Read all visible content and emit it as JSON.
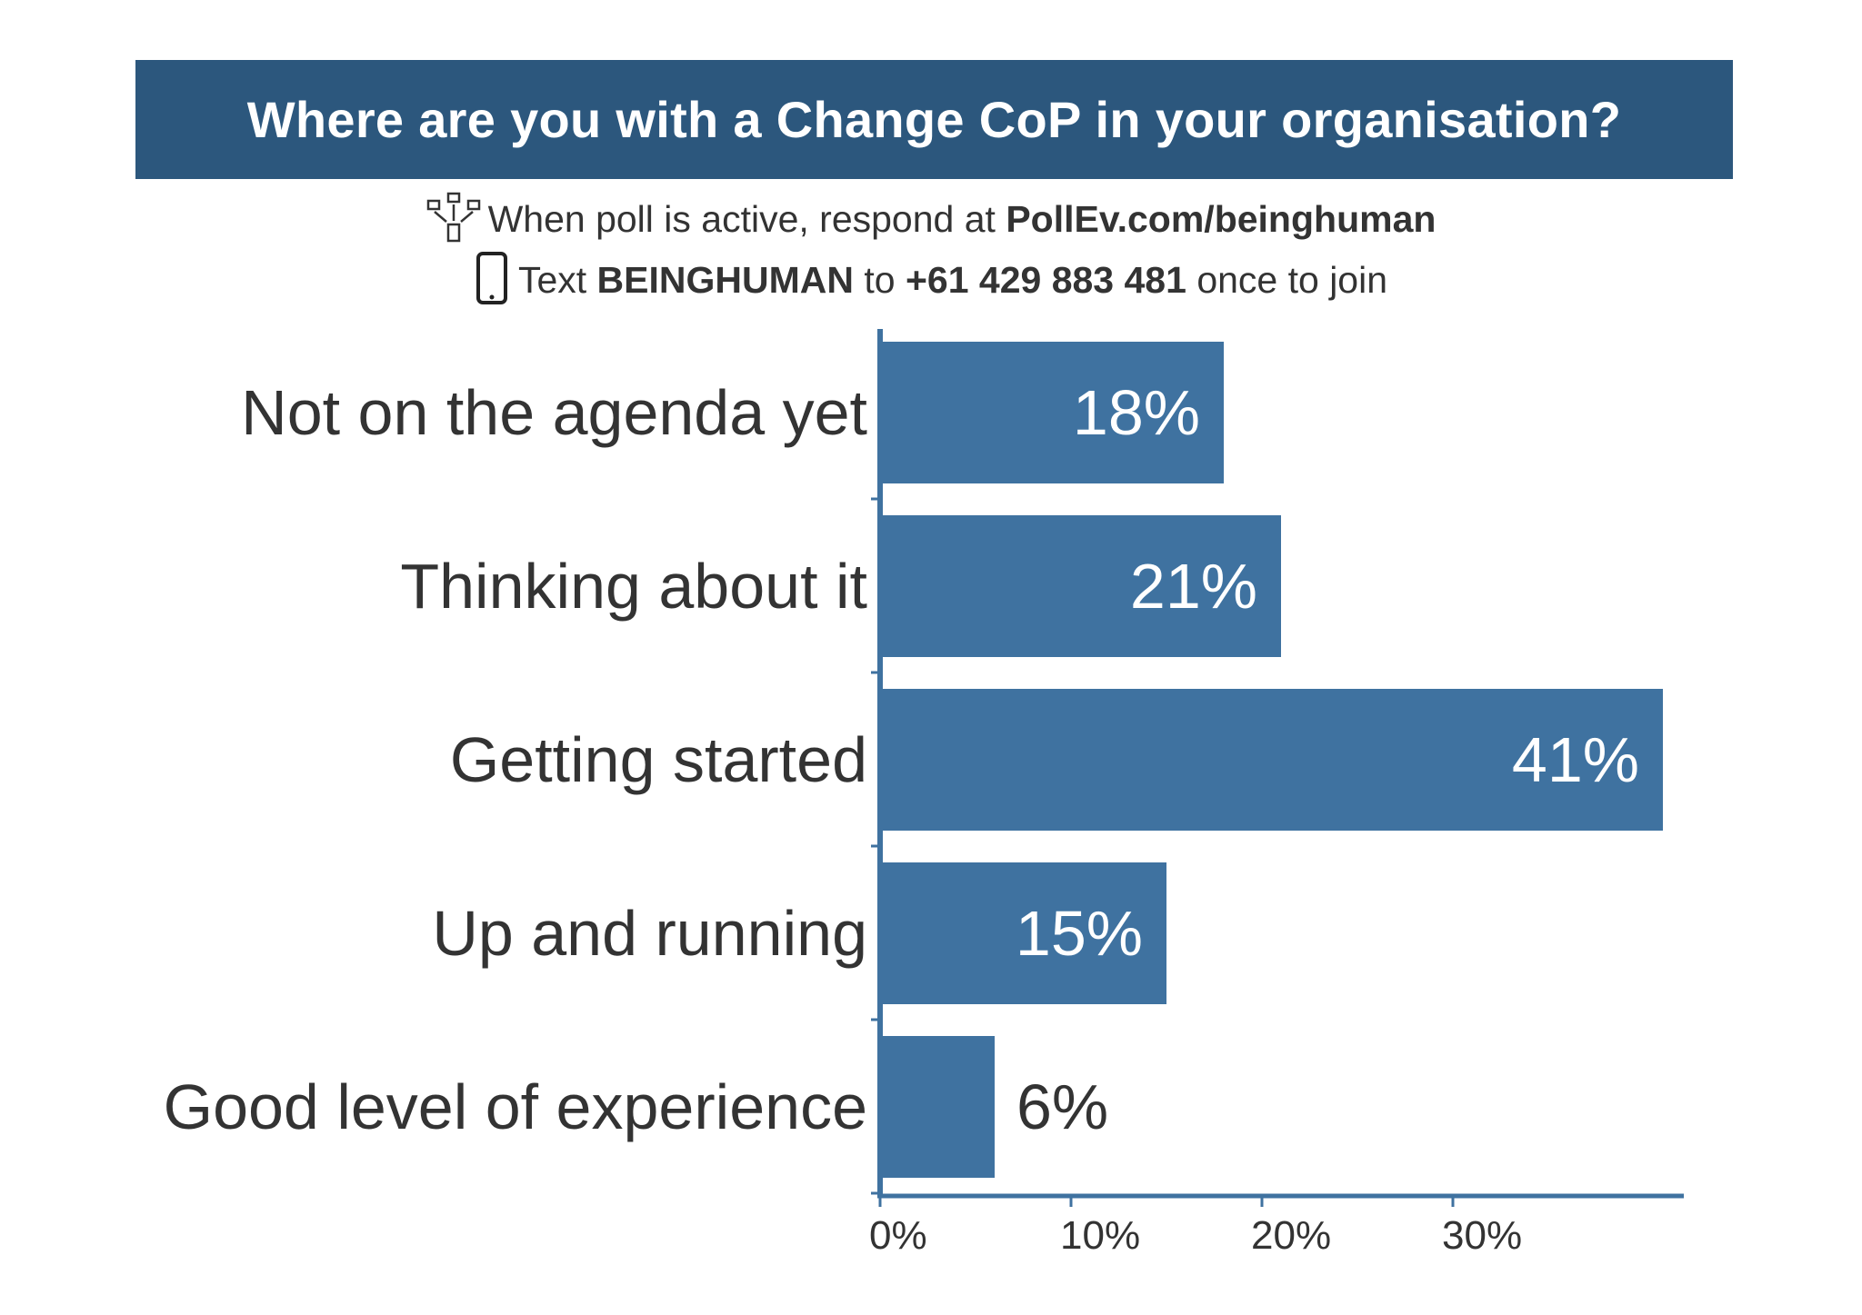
{
  "header": {
    "title": "Where are you with a Change CoP in your organisation?"
  },
  "instructions": {
    "web_prefix": "When poll is active, respond at ",
    "web_url": "PollEv.com/beinghuman",
    "web_icon": "network-devices-icon",
    "sms_prefix": "Text ",
    "sms_keyword": "BEINGHUMAN",
    "sms_mid": " to ",
    "sms_number": "+61 429 883 481",
    "sms_suffix": " once to join",
    "sms_icon": "phone-icon"
  },
  "chart_data": {
    "type": "bar",
    "orientation": "horizontal",
    "title": "Where are you with a Change CoP in your organisation?",
    "categories": [
      "Not on the agenda yet",
      "Thinking about it",
      "Getting started",
      "Up and running",
      "Good level of experience"
    ],
    "values": [
      18,
      21,
      41,
      15,
      6
    ],
    "value_labels": [
      "18%",
      "21%",
      "41%",
      "15%",
      "6%"
    ],
    "x_ticks": [
      0,
      10,
      20,
      30
    ],
    "x_tick_labels": [
      "0%",
      "10%",
      "20%",
      "30%"
    ],
    "xlim": [
      0,
      42
    ],
    "bar_color": "#3f72a0",
    "label_inside_color": "#ffffff",
    "label_outside_color": "#333333",
    "axis_color": "#3f72a0"
  }
}
